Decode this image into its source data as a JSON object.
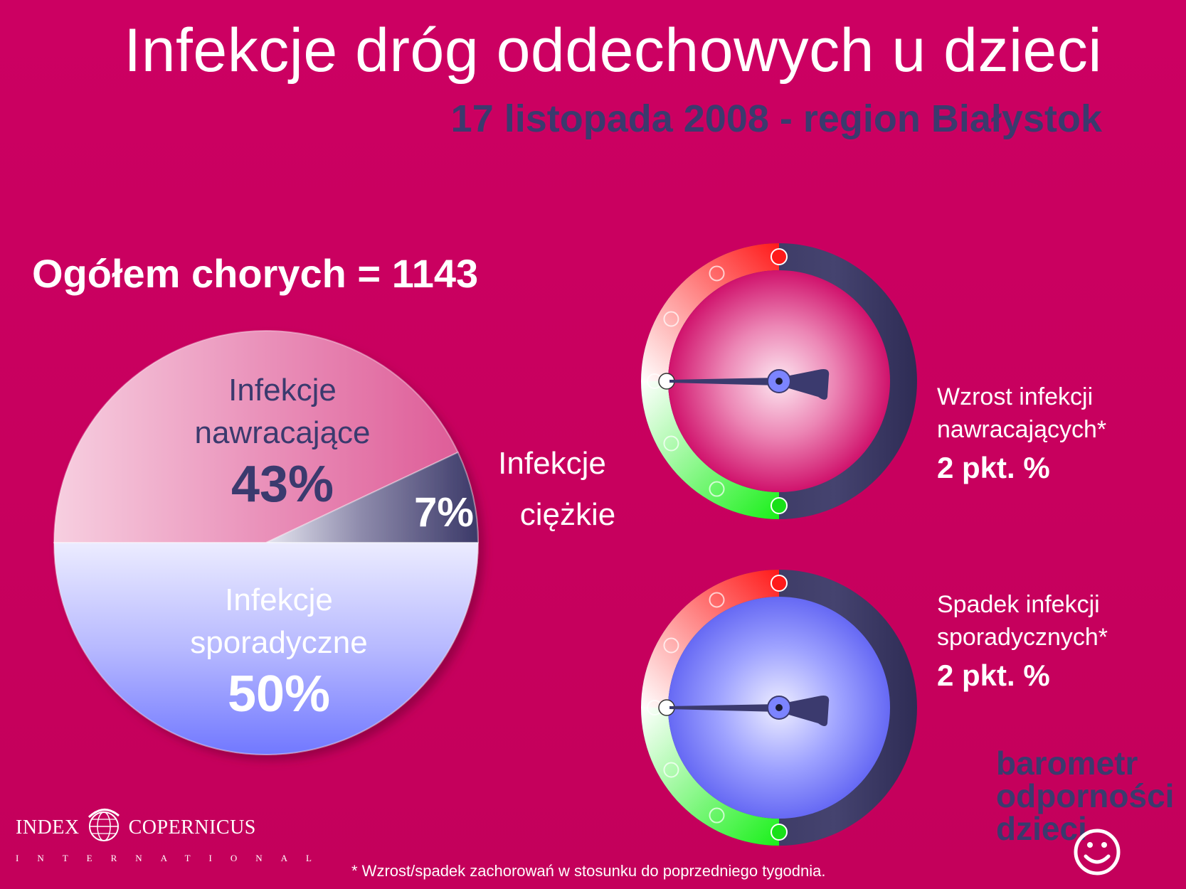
{
  "title": "Infekcje dróg oddechowych u dzieci",
  "subtitle": "17 listopada 2008 - region Białystok",
  "total_label": "Ogółem chorych = 1143",
  "chart_data": [
    {
      "type": "pie",
      "categories": [
        "Infekcje nawracające",
        "Infekcje ciężkie",
        "Infekcje sporadyczne"
      ],
      "values": [
        43,
        7,
        50
      ],
      "labels": [
        {
          "line1": "Infekcje",
          "line2": "nawracające",
          "pct": "43%"
        },
        {
          "line1": "Infekcje",
          "line2": "ciężkie",
          "pct": "7%"
        },
        {
          "line1": "Infekcje",
          "line2": "sporadyczne",
          "pct": "50%"
        }
      ],
      "colors": [
        "#e56fa0",
        "#3f3d6b",
        "#8f95ff"
      ]
    }
  ],
  "gauges": [
    {
      "label_line1": "Wzrost infekcji",
      "label_line2": "nawracających*",
      "value": "2 pkt. %",
      "face_color": "#d81673"
    },
    {
      "label_line1": "Spadek infekcji",
      "label_line2": "sporadycznych*",
      "value": "2 pkt. %",
      "face_color": "#6f72ff"
    }
  ],
  "brand": {
    "line1": "barometr",
    "line2": "odporności",
    "line3": "dzieci"
  },
  "logo": {
    "left": "INDEX",
    "right": "COPERNICUS",
    "sub": "INTERNATIONAL"
  },
  "footnote": "* Wzrost/spadek zachorowań w stosunku do poprzedniego tygodnia.",
  "colors": {
    "background": "#c8005e",
    "accent_dark": "#3b3a6e"
  }
}
